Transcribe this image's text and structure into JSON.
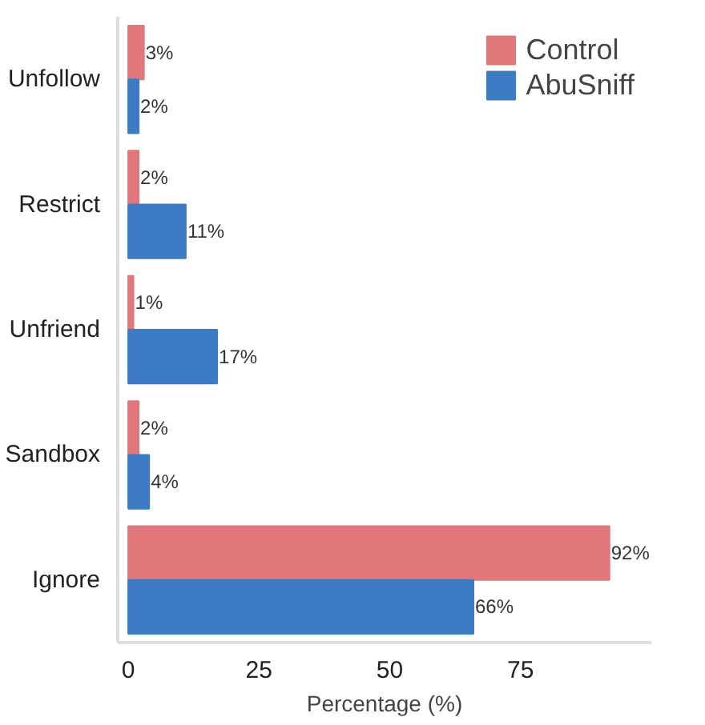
{
  "chart_data": {
    "type": "bar",
    "orientation": "horizontal",
    "xlabel": "Percentage (%)",
    "categories": [
      "Unfollow",
      "Restrict",
      "Unfriend",
      "Sandbox",
      "Ignore"
    ],
    "series": [
      {
        "name": "Control",
        "color": "#e2777b",
        "values": [
          3,
          2,
          1,
          2,
          92
        ],
        "value_labels": [
          "3%",
          "2%",
          "1%",
          "2%",
          "92%"
        ]
      },
      {
        "name": "AbuSniff",
        "color": "#3d7cc4",
        "values": [
          2,
          11,
          17,
          4,
          66
        ],
        "value_labels": [
          "2%",
          "11%",
          "17%",
          "4%",
          "66%"
        ]
      }
    ],
    "xlim": [
      -2,
      100
    ],
    "xticks": [
      0,
      25,
      50,
      75
    ],
    "grid": false,
    "legend": "top right"
  }
}
